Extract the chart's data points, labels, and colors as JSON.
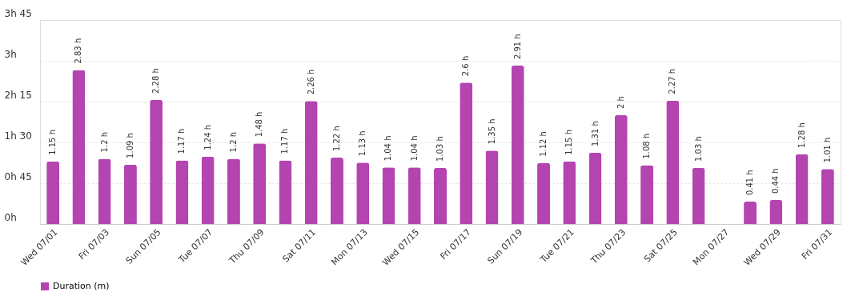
{
  "chart_data": {
    "type": "bar",
    "categories": [
      "Wed 07/01",
      null,
      "Fri 07/03",
      null,
      "Sun 07/05",
      null,
      "Tue 07/07",
      null,
      "Thu 07/09",
      null,
      "Sat 07/11",
      null,
      "Mon 07/13",
      null,
      "Wed 07/15",
      null,
      "Fri 07/17",
      null,
      "Sun 07/19",
      null,
      "Tue 07/21",
      null,
      "Thu 07/23",
      null,
      "Sat 07/25",
      null,
      "Mon 07/27",
      null,
      "Wed 07/29",
      null,
      "Fri 07/31"
    ],
    "series": [
      {
        "name": "Duration (m)",
        "color": "#b444b0",
        "values": [
          1.15,
          2.83,
          1.2,
          1.09,
          2.28,
          1.17,
          1.24,
          1.2,
          1.48,
          1.17,
          2.26,
          1.22,
          1.13,
          1.04,
          1.04,
          1.03,
          2.6,
          1.35,
          2.91,
          1.12,
          1.15,
          1.31,
          2,
          1.08,
          2.27,
          1.03,
          null,
          0.41,
          0.44,
          1.28,
          1.01
        ],
        "value_labels": [
          "1.15 h",
          "2.83 h",
          "1.2 h",
          "1.09 h",
          "2.28 h",
          "1.17 h",
          "1.24 h",
          "1.2 h",
          "1.48 h",
          "1.17 h",
          "2.26 h",
          "1.22 h",
          "1.13 h",
          "1.04 h",
          "1.04 h",
          "1.03 h",
          "2.6 h",
          "1.35 h",
          "2.91 h",
          "1.12 h",
          "1.15 h",
          "1.31 h",
          "2 h",
          "1.08 h",
          "2.27 h",
          "1.03 h",
          null,
          "0.41 h",
          "0.44 h",
          "1.28 h",
          "1.01 h"
        ]
      }
    ],
    "ylim": [
      0,
      3.75
    ],
    "yticks": [
      {
        "value": 0,
        "label": "0h"
      },
      {
        "value": 0.75,
        "label": "0h 45"
      },
      {
        "value": 1.5,
        "label": "1h 30"
      },
      {
        "value": 2.25,
        "label": "2h 15"
      },
      {
        "value": 3,
        "label": "3h"
      },
      {
        "value": 3.75,
        "label": "3h 45"
      }
    ],
    "grid": "y",
    "legend": "bottom"
  }
}
